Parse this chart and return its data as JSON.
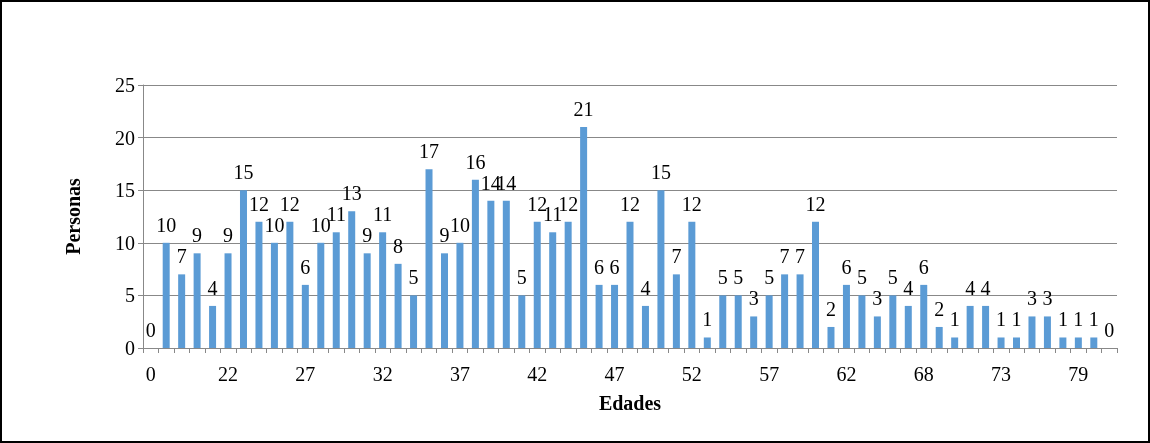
{
  "chart_data": {
    "type": "bar",
    "xlabel": "Edades",
    "ylabel": "Personas",
    "categories": [
      "0",
      null,
      null,
      null,
      null,
      "22",
      null,
      null,
      null,
      null,
      "27",
      null,
      null,
      null,
      null,
      "32",
      null,
      null,
      null,
      null,
      "37",
      null,
      null,
      null,
      null,
      "42",
      null,
      null,
      null,
      null,
      "47",
      null,
      null,
      null,
      null,
      "52",
      null,
      null,
      null,
      null,
      "57",
      null,
      null,
      null,
      null,
      "62",
      null,
      null,
      null,
      null,
      "68",
      null,
      null,
      null,
      null,
      "73",
      null,
      null,
      null,
      null,
      "79",
      null,
      null
    ],
    "values": [
      0,
      10,
      7,
      9,
      4,
      9,
      15,
      12,
      10,
      12,
      6,
      10,
      11,
      13,
      9,
      11,
      8,
      5,
      17,
      9,
      10,
      16,
      14,
      14,
      5,
      12,
      11,
      12,
      21,
      6,
      6,
      12,
      4,
      15,
      7,
      12,
      1,
      5,
      5,
      3,
      5,
      7,
      7,
      12,
      2,
      6,
      5,
      3,
      5,
      4,
      6,
      2,
      1,
      4,
      4,
      1,
      1,
      3,
      3,
      1,
      1,
      1,
      0
    ],
    "color": "#5b9bd5",
    "ylim": [
      0,
      25
    ],
    "yticks": [
      0,
      5,
      10,
      15,
      20,
      25
    ],
    "grid": "y",
    "data_labels": true
  }
}
